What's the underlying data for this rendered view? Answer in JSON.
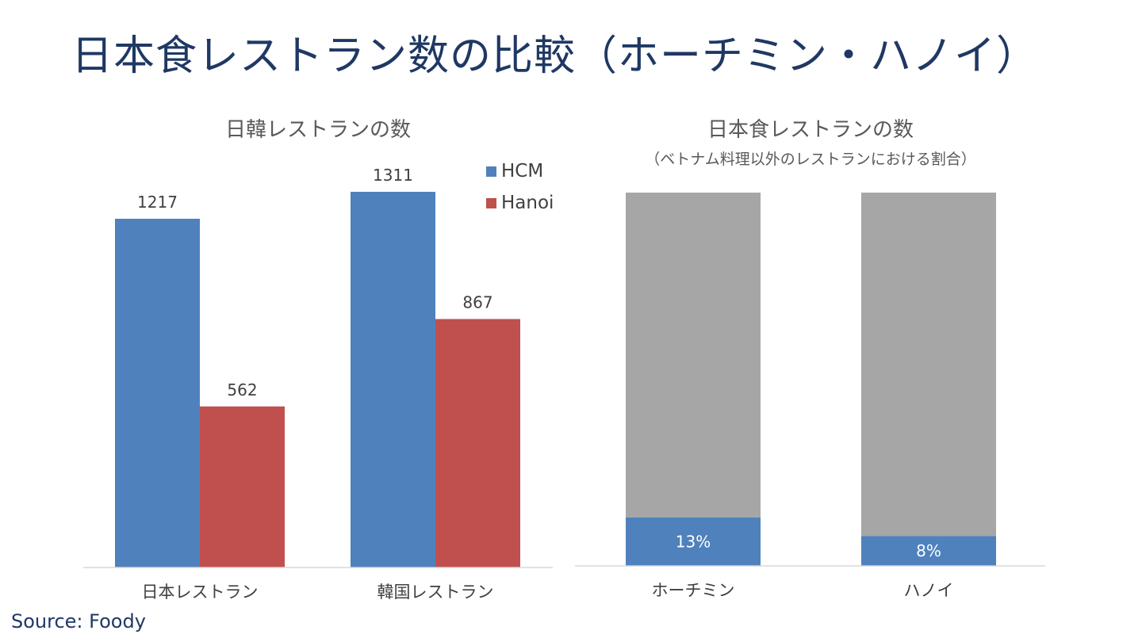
{
  "title": "日本食レストラン数の比較（ホーチミン・ハノイ）",
  "source": "Source: Foody",
  "colors": {
    "hcm": "#4f81bd",
    "hanoi": "#c0504d",
    "rest": "#a6a6a6",
    "title": "#1f3864",
    "text": "#404040"
  },
  "chart_data": [
    {
      "type": "bar",
      "title": "日韓レストランの数",
      "categories": [
        "日本レストラン",
        "韓国レストラン"
      ],
      "series": [
        {
          "name": "HCM",
          "values": [
            1217,
            1311
          ]
        },
        {
          "name": "Hanoi",
          "values": [
            562,
            867
          ]
        }
      ],
      "ylim": [
        0,
        1311
      ],
      "legend": "top-right",
      "grid": false,
      "data_labels": true
    },
    {
      "type": "bar",
      "stacked": true,
      "title": "日本食レストランの数",
      "subtitle": "（ベトナム料理以外のレストランにおける割合）",
      "categories": [
        "ホーチミン",
        "ハノイ"
      ],
      "series": [
        {
          "values": [
            13,
            8
          ],
          "labels": [
            "13%",
            "8%"
          ]
        },
        {
          "values": [
            87,
            92
          ]
        }
      ],
      "ylim": [
        0,
        100
      ],
      "grid": false
    }
  ]
}
